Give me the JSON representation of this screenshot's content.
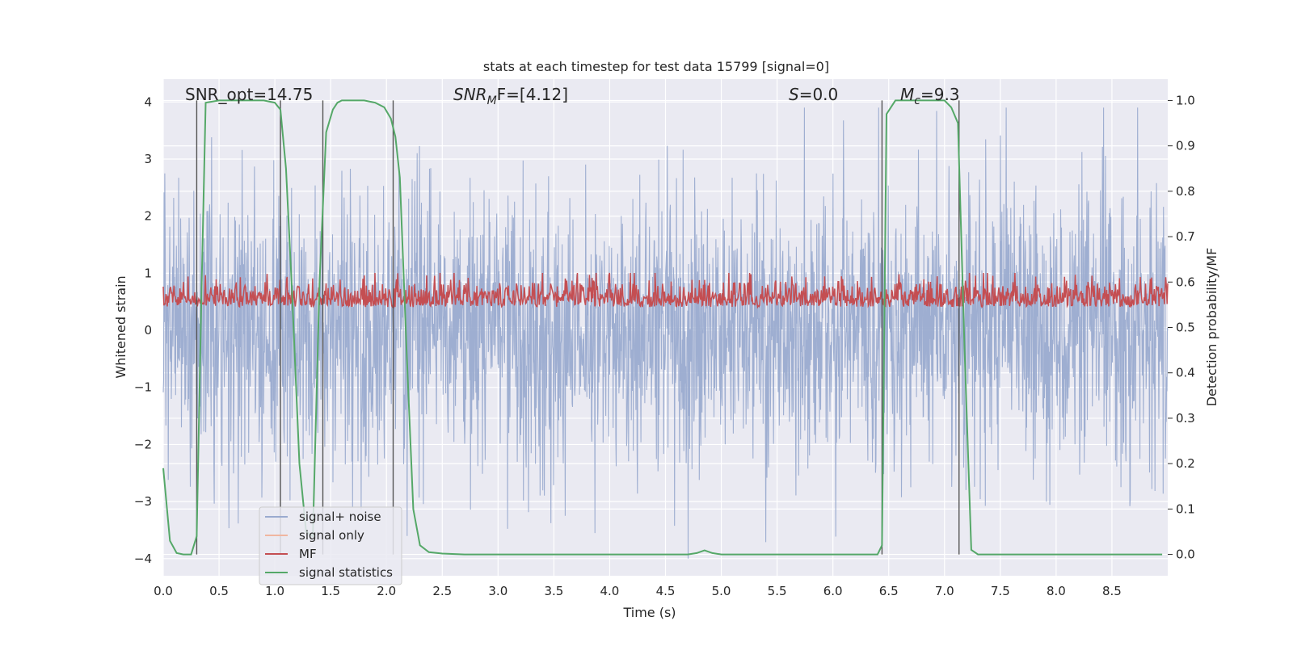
{
  "chart_data": {
    "type": "line",
    "title": "stats at each timestep for test data 15799 [signal=0]",
    "xlabel": "Time (s)",
    "ylabel_left": "Whitened strain",
    "ylabel_right": "Detection probability/MF",
    "xlim": [
      0.0,
      9.0
    ],
    "ylim_left": [
      -4.3,
      4.4
    ],
    "ylim_right": [
      -0.047,
      1.047
    ],
    "x_ticks": [
      "0.0",
      "0.5",
      "1.0",
      "1.5",
      "2.0",
      "2.5",
      "3.0",
      "3.5",
      "4.0",
      "4.5",
      "5.0",
      "5.5",
      "6.0",
      "6.5",
      "7.0",
      "7.5",
      "8.0",
      "8.5"
    ],
    "y_left_ticks": [
      "4",
      "3",
      "2",
      "1",
      "0",
      "−1",
      "−2",
      "−3",
      "−4"
    ],
    "y_right_ticks": [
      "1.0",
      "0.9",
      "0.8",
      "0.7",
      "0.6",
      "0.5",
      "0.4",
      "0.3",
      "0.2",
      "0.1",
      "0.0"
    ],
    "annotations": {
      "snr_opt": "SNR_opt=14.75",
      "snr_mf_sym": "SNR",
      "snr_mf_sub": "M",
      "snr_mf_rest": "F=[4.12]",
      "s_sym": "S",
      "s_rest": "=0.0",
      "mc_sym": "M",
      "mc_sub": "c",
      "mc_rest": "=9.3"
    },
    "vertical_markers_s": [
      0.3,
      1.05,
      1.43,
      2.06,
      6.44,
      7.13
    ],
    "series": [
      {
        "name": "signal+ noise",
        "color": "#9aabcf",
        "axis": "left",
        "description": "whitened strain noise, roughly ±2 with spikes to ±4",
        "envelope": [
          -4.0,
          3.9
        ]
      },
      {
        "name": "signal only",
        "color": "#f0b6a0",
        "axis": "left",
        "values": []
      },
      {
        "name": "MF",
        "color": "#c44e52",
        "axis": "right",
        "description": "matched filter output fluctuating between 0.5 and 0.62",
        "range": [
          0.5,
          0.62
        ]
      },
      {
        "name": "signal statistics",
        "color": "#55a868",
        "axis": "right",
        "x": [
          0.0,
          0.06,
          0.12,
          0.18,
          0.25,
          0.3,
          0.34,
          0.38,
          0.5,
          0.6,
          0.7,
          0.8,
          0.9,
          1.0,
          1.05,
          1.1,
          1.15,
          1.22,
          1.28,
          1.34,
          1.4,
          1.46,
          1.52,
          1.56,
          1.6,
          1.7,
          1.8,
          1.9,
          1.98,
          2.04,
          2.08,
          2.12,
          2.18,
          2.24,
          2.3,
          2.38,
          2.5,
          2.7,
          3.0,
          3.5,
          4.0,
          4.5,
          4.7,
          4.78,
          4.85,
          4.92,
          5.0,
          5.5,
          6.0,
          6.2,
          6.4,
          6.44,
          6.48,
          6.56,
          6.65,
          6.8,
          6.9,
          7.0,
          7.06,
          7.12,
          7.18,
          7.24,
          7.3,
          7.6,
          8.0,
          8.5,
          8.95
        ],
        "values": [
          0.19,
          0.03,
          0.003,
          0.0,
          0.0,
          0.04,
          0.55,
          0.995,
          1.0,
          1.0,
          1.0,
          1.0,
          1.0,
          0.995,
          0.98,
          0.85,
          0.6,
          0.2,
          0.05,
          0.04,
          0.6,
          0.93,
          0.98,
          0.995,
          1.0,
          1.0,
          1.0,
          0.995,
          0.985,
          0.96,
          0.92,
          0.83,
          0.45,
          0.1,
          0.02,
          0.005,
          0.002,
          0.0,
          0.0,
          0.0,
          0.0,
          0.0,
          0.0,
          0.003,
          0.009,
          0.003,
          0.0,
          0.0,
          0.0,
          0.0,
          0.0,
          0.02,
          0.97,
          1.0,
          1.0,
          1.0,
          1.0,
          1.0,
          0.985,
          0.95,
          0.45,
          0.01,
          0.0,
          0.0,
          0.0,
          0.0,
          0.0
        ]
      }
    ],
    "legend_location": "lower-left"
  }
}
